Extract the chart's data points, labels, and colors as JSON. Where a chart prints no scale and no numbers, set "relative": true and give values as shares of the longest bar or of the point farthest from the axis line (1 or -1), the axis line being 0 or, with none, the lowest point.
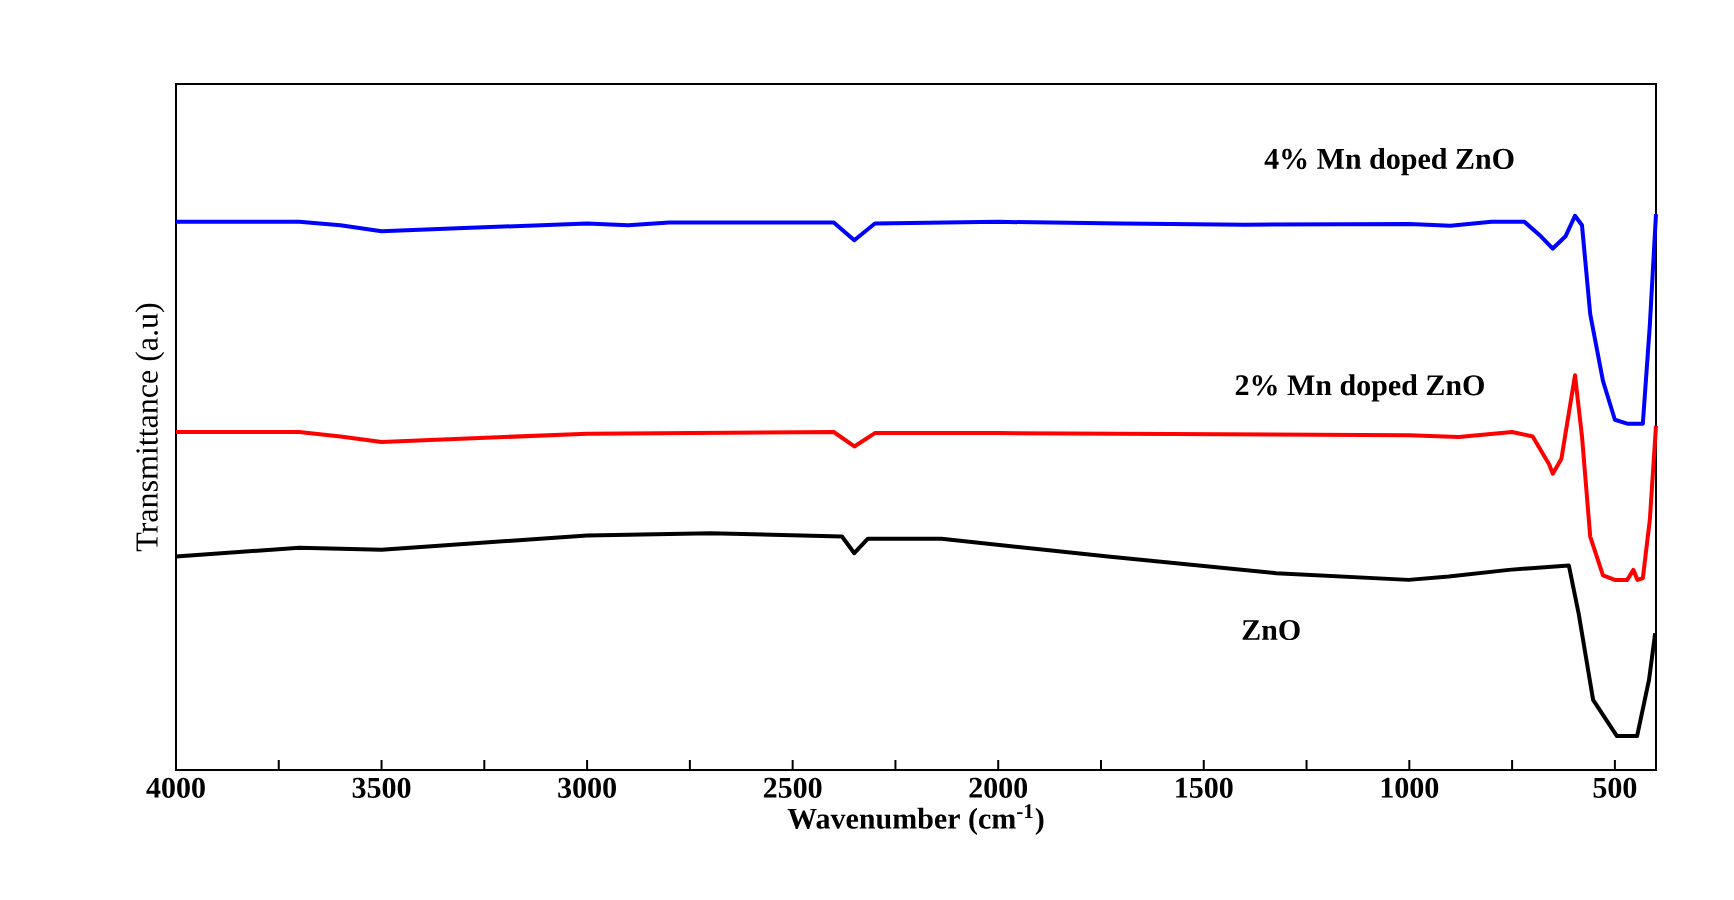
{
  "chart_data": {
    "type": "line",
    "relative": true,
    "xlabel": "Wavenumber (cm$^{-1}$)",
    "ylabel": "Transmittance (a.u)",
    "xlim": [
      4000,
      400
    ],
    "xticks": [
      4000,
      {
        "value": 3750,
        "label": null
      },
      3500,
      {
        "value": 3250,
        "label": null
      },
      3000,
      {
        "value": 2750,
        "label": null
      },
      2500,
      {
        "value": 2250,
        "label": null
      },
      2000,
      {
        "value": 1750,
        "label": null
      },
      1500,
      {
        "value": 1250,
        "label": null
      },
      1000,
      {
        "value": 750,
        "label": null
      },
      500
    ],
    "tick_labels": "x",
    "grid": false,
    "marker": "none",
    "line_style": "solid",
    "series": [
      {
        "name": "4% Mn doped ZnO",
        "color": "#0000ff",
        "x": [
          4000,
          3700,
          3600,
          3500,
          3300,
          3000,
          2900,
          2800,
          2400,
          2350,
          2300,
          2000,
          1700,
          1400,
          1000,
          900,
          800,
          720,
          680,
          651,
          620,
          597,
          580,
          560,
          529,
          500,
          470,
          432,
          415,
          400
        ],
        "values": [
          0.986,
          0.986,
          0.98,
          0.969,
          0.975,
          0.983,
          0.98,
          0.985,
          0.985,
          0.953,
          0.983,
          0.986,
          0.983,
          0.981,
          0.982,
          0.979,
          0.986,
          0.986,
          0.96,
          0.938,
          0.96,
          0.997,
          0.98,
          0.82,
          0.7,
          0.63,
          0.623,
          0.623,
          0.8,
          1.0
        ]
      },
      {
        "name": "2% Mn doped ZnO",
        "color": "#ff0000",
        "x": [
          4000,
          3700,
          3600,
          3500,
          3000,
          2400,
          2350,
          2300,
          2000,
          1000,
          880,
          750,
          700,
          660,
          651,
          630,
          597,
          580,
          560,
          529,
          500,
          470,
          455,
          445,
          432,
          415,
          400
        ],
        "values": [
          0.608,
          0.608,
          0.6,
          0.59,
          0.605,
          0.608,
          0.582,
          0.606,
          0.606,
          0.602,
          0.599,
          0.608,
          0.6,
          0.55,
          0.533,
          0.56,
          0.71,
          0.6,
          0.42,
          0.35,
          0.342,
          0.342,
          0.36,
          0.342,
          0.345,
          0.45,
          0.619
        ]
      },
      {
        "name": "ZnO",
        "color": "#000000",
        "x": [
          4000,
          3700,
          3500,
          3000,
          2700,
          2380,
          2350,
          2317,
          2138,
          1733,
          1324,
          1002,
          904,
          758,
          612,
          588,
          553,
          495,
          446,
          417,
          402
        ],
        "values": [
          0.384,
          0.4,
          0.396,
          0.422,
          0.426,
          0.42,
          0.39,
          0.416,
          0.416,
          0.384,
          0.354,
          0.342,
          0.348,
          0.36,
          0.368,
          0.281,
          0.126,
          0.061,
          0.061,
          0.162,
          0.246
        ]
      }
    ]
  }
}
